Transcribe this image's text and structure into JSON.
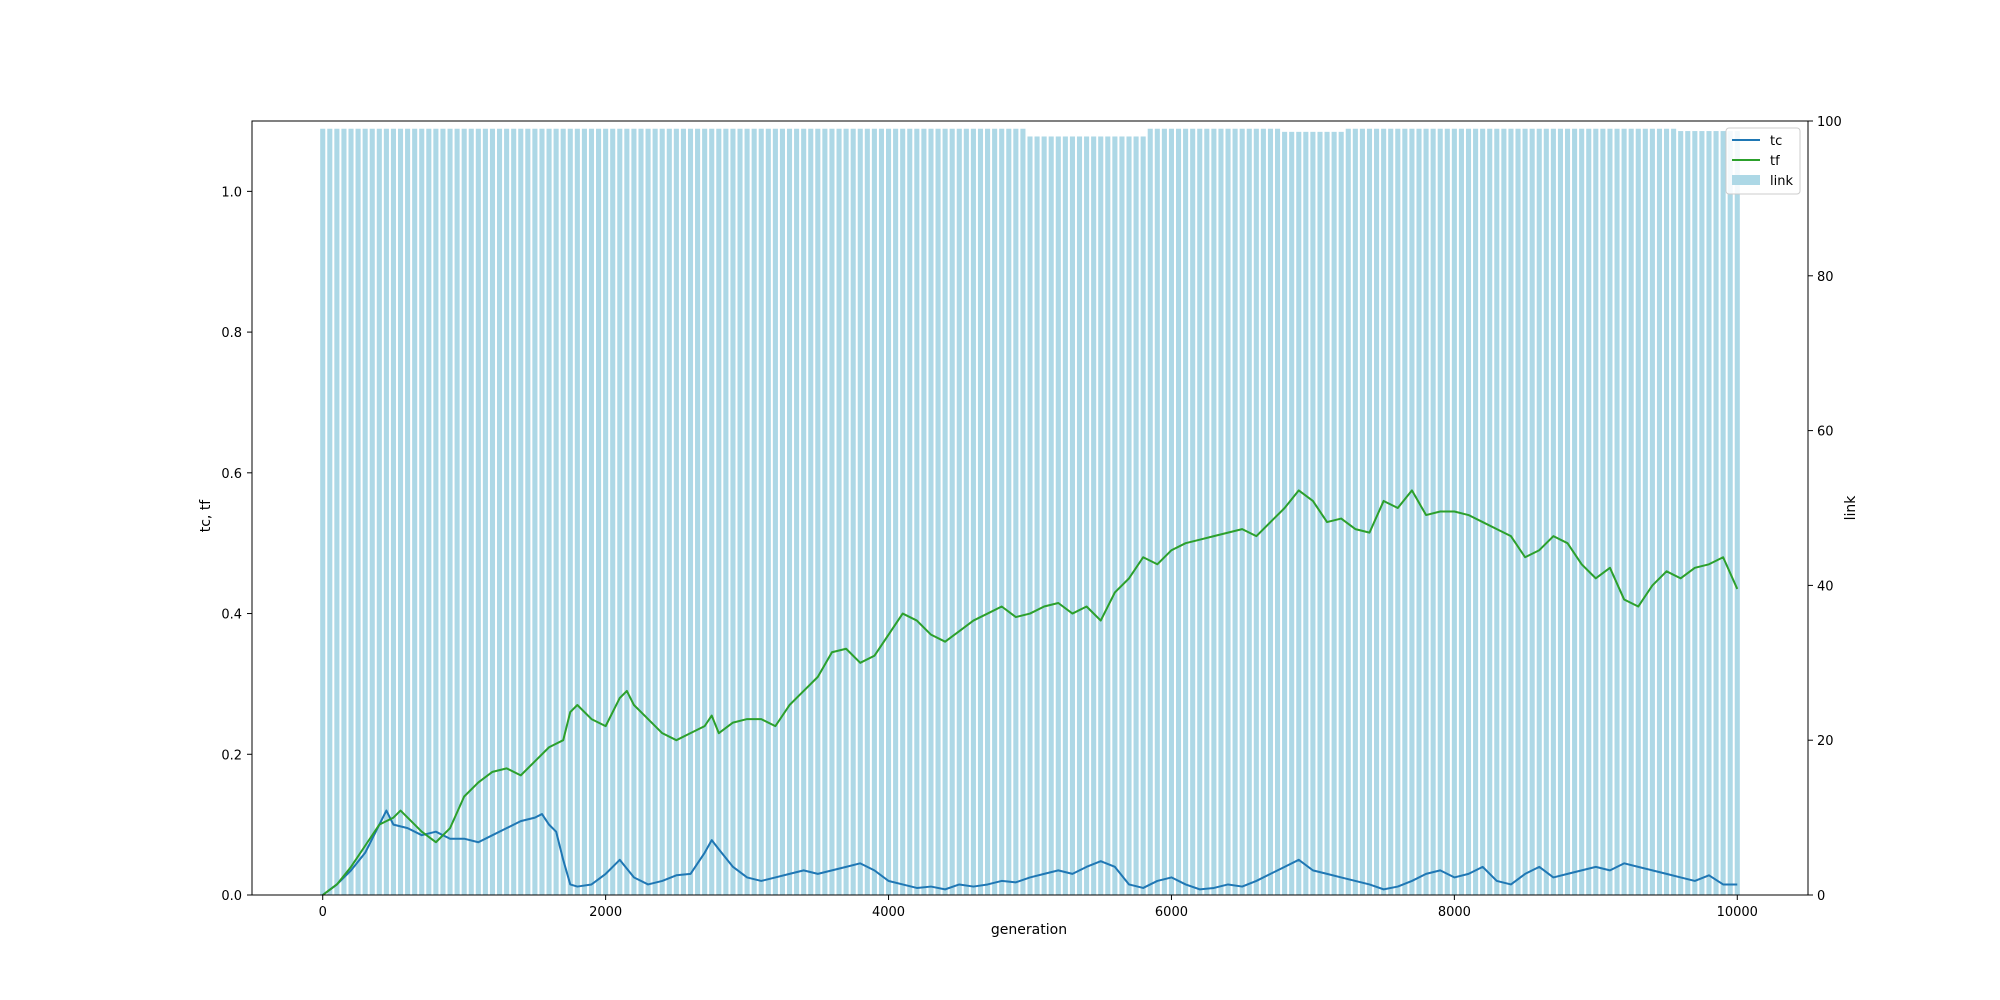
{
  "chart_data": {
    "type": "bar",
    "xlabel": "generation",
    "ylabel_left": "tc, tf",
    "ylabel_right": "link",
    "xlim": [
      -500,
      10500
    ],
    "ylim_left": [
      0,
      1.1
    ],
    "ylim_right": [
      0,
      100
    ],
    "xticks": [
      0,
      2000,
      4000,
      6000,
      8000,
      10000
    ],
    "yticks_left": [
      0.0,
      0.2,
      0.4,
      0.6,
      0.8,
      1.0
    ],
    "yticks_right": [
      0,
      20,
      40,
      60,
      80,
      100
    ],
    "legend": {
      "position": "upper-right",
      "entries": [
        "tc",
        "tf",
        "link"
      ]
    },
    "colors": {
      "tc": "#1f77b4",
      "tf": "#2ca02c",
      "link": "#add8e6"
    },
    "link_bars": {
      "x_start": 0,
      "x_step": 50,
      "count": 201,
      "base_value": 99,
      "dips": [
        {
          "x": [
            5000,
            5800
          ],
          "value": 98
        },
        {
          "x": [
            6800,
            7200
          ],
          "value": 98.6
        },
        {
          "x": [
            9600,
            10000
          ],
          "value": 98.7
        }
      ]
    },
    "series": [
      {
        "name": "tc",
        "x": [
          0,
          100,
          200,
          300,
          400,
          450,
          500,
          600,
          700,
          800,
          900,
          1000,
          1100,
          1200,
          1300,
          1400,
          1500,
          1550,
          1600,
          1650,
          1700,
          1750,
          1800,
          1900,
          2000,
          2100,
          2200,
          2300,
          2400,
          2500,
          2600,
          2700,
          2750,
          2800,
          2900,
          3000,
          3100,
          3200,
          3300,
          3400,
          3500,
          3600,
          3700,
          3800,
          3900,
          4000,
          4100,
          4200,
          4300,
          4400,
          4500,
          4600,
          4700,
          4800,
          4900,
          5000,
          5100,
          5200,
          5300,
          5400,
          5500,
          5600,
          5700,
          5800,
          5900,
          6000,
          6100,
          6200,
          6300,
          6400,
          6500,
          6600,
          6700,
          6800,
          6900,
          7000,
          7100,
          7200,
          7300,
          7400,
          7500,
          7600,
          7700,
          7800,
          7900,
          8000,
          8100,
          8200,
          8300,
          8400,
          8500,
          8600,
          8700,
          8800,
          8900,
          9000,
          9100,
          9200,
          9300,
          9400,
          9500,
          9600,
          9700,
          9800,
          9900,
          10000
        ],
        "values": [
          0.0,
          0.015,
          0.035,
          0.06,
          0.1,
          0.12,
          0.1,
          0.095,
          0.085,
          0.09,
          0.08,
          0.08,
          0.075,
          0.085,
          0.095,
          0.105,
          0.11,
          0.115,
          0.1,
          0.09,
          0.05,
          0.015,
          0.012,
          0.015,
          0.03,
          0.05,
          0.025,
          0.015,
          0.02,
          0.028,
          0.03,
          0.06,
          0.078,
          0.065,
          0.04,
          0.025,
          0.02,
          0.025,
          0.03,
          0.035,
          0.03,
          0.035,
          0.04,
          0.045,
          0.035,
          0.02,
          0.015,
          0.01,
          0.012,
          0.008,
          0.015,
          0.012,
          0.015,
          0.02,
          0.018,
          0.025,
          0.03,
          0.035,
          0.03,
          0.04,
          0.048,
          0.04,
          0.015,
          0.01,
          0.02,
          0.025,
          0.015,
          0.008,
          0.01,
          0.015,
          0.012,
          0.02,
          0.03,
          0.04,
          0.05,
          0.035,
          0.03,
          0.025,
          0.02,
          0.015,
          0.008,
          0.012,
          0.02,
          0.03,
          0.035,
          0.025,
          0.03,
          0.04,
          0.02,
          0.015,
          0.03,
          0.04,
          0.025,
          0.03,
          0.035,
          0.04,
          0.035,
          0.045,
          0.04,
          0.035,
          0.03,
          0.025,
          0.02,
          0.028,
          0.015,
          0.015
        ]
      },
      {
        "name": "tf",
        "x": [
          0,
          100,
          200,
          300,
          400,
          500,
          550,
          600,
          700,
          800,
          900,
          1000,
          1100,
          1200,
          1300,
          1400,
          1500,
          1600,
          1700,
          1750,
          1800,
          1900,
          2000,
          2100,
          2150,
          2200,
          2300,
          2400,
          2500,
          2600,
          2700,
          2750,
          2800,
          2900,
          3000,
          3100,
          3200,
          3300,
          3400,
          3500,
          3600,
          3700,
          3800,
          3900,
          4000,
          4100,
          4200,
          4300,
          4400,
          4500,
          4600,
          4700,
          4800,
          4900,
          5000,
          5100,
          5200,
          5300,
          5400,
          5500,
          5600,
          5700,
          5800,
          5900,
          6000,
          6100,
          6200,
          6300,
          6400,
          6500,
          6600,
          6700,
          6800,
          6900,
          7000,
          7100,
          7200,
          7300,
          7400,
          7500,
          7600,
          7700,
          7800,
          7900,
          8000,
          8100,
          8200,
          8300,
          8400,
          8500,
          8600,
          8700,
          8800,
          8900,
          9000,
          9100,
          9200,
          9300,
          9400,
          9500,
          9600,
          9700,
          9800,
          9900,
          10000
        ],
        "values": [
          0.0,
          0.015,
          0.04,
          0.07,
          0.1,
          0.11,
          0.12,
          0.11,
          0.09,
          0.075,
          0.095,
          0.14,
          0.16,
          0.175,
          0.18,
          0.17,
          0.19,
          0.21,
          0.22,
          0.26,
          0.27,
          0.25,
          0.24,
          0.28,
          0.29,
          0.27,
          0.25,
          0.23,
          0.22,
          0.23,
          0.24,
          0.255,
          0.23,
          0.245,
          0.25,
          0.25,
          0.24,
          0.27,
          0.29,
          0.31,
          0.345,
          0.35,
          0.33,
          0.34,
          0.37,
          0.4,
          0.39,
          0.37,
          0.36,
          0.375,
          0.39,
          0.4,
          0.41,
          0.395,
          0.4,
          0.41,
          0.415,
          0.4,
          0.41,
          0.39,
          0.43,
          0.45,
          0.48,
          0.47,
          0.49,
          0.5,
          0.505,
          0.51,
          0.515,
          0.52,
          0.51,
          0.53,
          0.55,
          0.575,
          0.56,
          0.53,
          0.535,
          0.52,
          0.515,
          0.56,
          0.55,
          0.575,
          0.54,
          0.545,
          0.545,
          0.54,
          0.53,
          0.52,
          0.51,
          0.48,
          0.49,
          0.51,
          0.5,
          0.47,
          0.45,
          0.465,
          0.42,
          0.41,
          0.44,
          0.46,
          0.45,
          0.465,
          0.47,
          0.48,
          0.435
        ]
      }
    ]
  }
}
